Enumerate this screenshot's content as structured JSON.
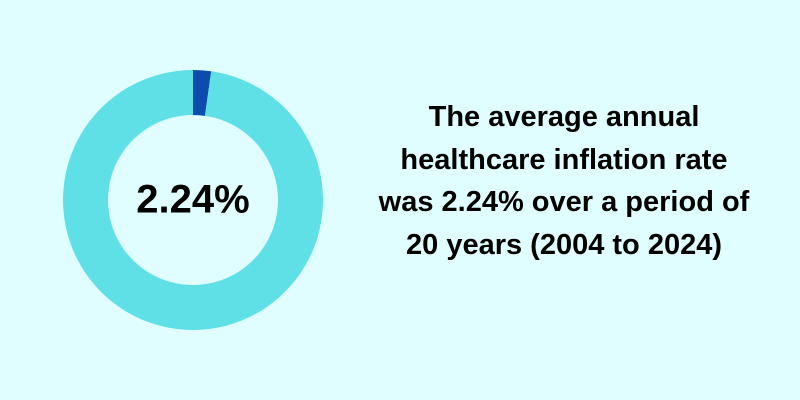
{
  "chart_data": {
    "type": "donut",
    "values": [
      2.24,
      97.76
    ],
    "value_labels": [
      "2.24%",
      null
    ],
    "colors": [
      "#0a4dad",
      "#5ee0e6"
    ],
    "annotation": "The average annual healthcare inflation rate was 2.24% over a period of 20 years (2004 to 2024)"
  }
}
